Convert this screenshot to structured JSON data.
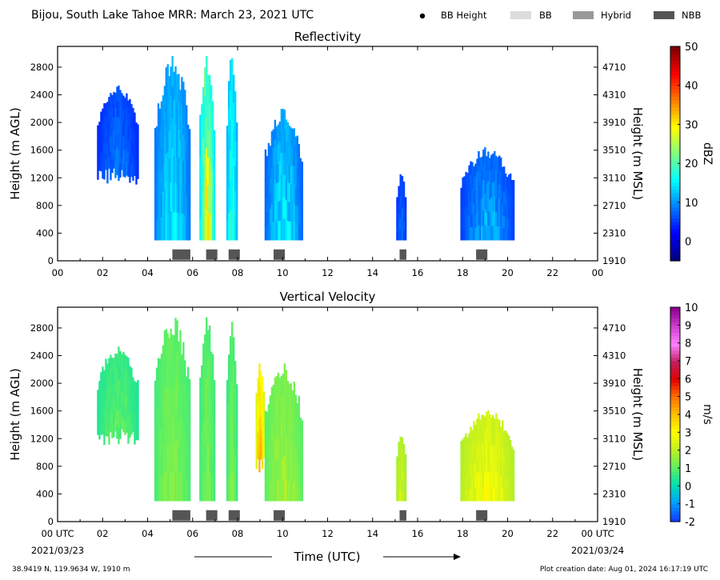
{
  "header": {
    "title": "Bijou, South Lake Tahoe MRR:  March 23, 2021 UTC",
    "legend": [
      {
        "label": "BB Height",
        "kind": "dot",
        "color": "#000000"
      },
      {
        "label": "BB",
        "kind": "patch",
        "color": "#dcdcdc"
      },
      {
        "label": "Hybrid",
        "kind": "patch",
        "color": "#999999"
      },
      {
        "label": "NBB",
        "kind": "patch",
        "color": "#555555"
      }
    ]
  },
  "footer": {
    "location": "38.9419 N, 119.9634 W, 1910 m",
    "creation": "Plot creation date: Aug 01, 2024 16:17:19 UTC",
    "start_date": "2021/03/23",
    "end_date": "2021/03/24",
    "xlabel": "Time (UTC)"
  },
  "chart_data": [
    {
      "type": "heatmap",
      "title": "Reflectivity",
      "ylabel": "Height (m AGL)",
      "ylabel_right": "Height (m MSL)",
      "xlim": [
        0,
        24
      ],
      "ylim": [
        0,
        3100
      ],
      "x_ticks": [
        "00",
        "02",
        "04",
        "06",
        "08",
        "10",
        "12",
        "14",
        "16",
        "18",
        "20",
        "22",
        "00"
      ],
      "x_ticks_values": [
        0,
        2,
        4,
        6,
        8,
        10,
        12,
        14,
        16,
        18,
        20,
        22,
        24
      ],
      "y_ticks": [
        0,
        400,
        800,
        1200,
        1600,
        2000,
        2400,
        2800
      ],
      "y_ticks_right": [
        "1910",
        "2310",
        "2710",
        "3110",
        "3510",
        "3910",
        "4310",
        "4710"
      ],
      "colorbar": {
        "label": "dBZ",
        "min": -5,
        "max": 50,
        "ticks": [
          0,
          10,
          20,
          30,
          40,
          50
        ],
        "colors": [
          "#00007f",
          "#0000ff",
          "#007fff",
          "#00ffff",
          "#7fff7f",
          "#ffff00",
          "#ff7f00",
          "#ff0000",
          "#7f0000"
        ]
      },
      "echo_blocks": [
        {
          "t0": 1.75,
          "t1": 3.6,
          "z0": 1100,
          "z1": 2550,
          "value": 4,
          "peak": 10
        },
        {
          "t0": 4.3,
          "t1": 5.9,
          "z0": 300,
          "z1": 3000,
          "value": 8,
          "peak": 17
        },
        {
          "t0": 6.3,
          "t1": 7.0,
          "z0": 300,
          "z1": 3000,
          "value": 13,
          "peak": 34
        },
        {
          "t0": 7.5,
          "t1": 8.0,
          "z0": 300,
          "z1": 3000,
          "value": 11,
          "peak": 20
        },
        {
          "t0": 9.2,
          "t1": 10.9,
          "z0": 300,
          "z1": 2250,
          "value": 7,
          "peak": 18
        },
        {
          "t0": 15.05,
          "t1": 15.5,
          "z0": 300,
          "z1": 1270,
          "value": 4,
          "peak": 9
        },
        {
          "t0": 17.9,
          "t1": 20.3,
          "z0": 300,
          "z1": 1650,
          "value": 5,
          "peak": 14
        }
      ],
      "nbb_bars": [
        [
          5.1,
          5.9
        ],
        [
          6.6,
          7.1
        ],
        [
          7.6,
          8.1
        ],
        [
          9.6,
          10.1
        ],
        [
          15.2,
          15.5
        ],
        [
          18.6,
          19.1
        ]
      ]
    },
    {
      "type": "heatmap",
      "title": "Vertical Velocity",
      "ylabel": "Height (m AGL)",
      "ylabel_right": "Height (m MSL)",
      "xlim": [
        0,
        24
      ],
      "ylim": [
        0,
        3100
      ],
      "x_ticks": [
        "00 UTC",
        "02",
        "04",
        "06",
        "08",
        "10",
        "12",
        "14",
        "16",
        "18",
        "20",
        "22",
        "00 UTC"
      ],
      "x_ticks_values": [
        0,
        2,
        4,
        6,
        8,
        10,
        12,
        14,
        16,
        18,
        20,
        22,
        24
      ],
      "y_ticks": [
        0,
        400,
        800,
        1200,
        1600,
        2000,
        2400,
        2800
      ],
      "y_ticks_right": [
        "1910",
        "2310",
        "2710",
        "3110",
        "3510",
        "3910",
        "4310",
        "4710"
      ],
      "colorbar": {
        "label": "m/s",
        "min": -2,
        "max": 10,
        "ticks": [
          -2,
          -1,
          0,
          1,
          2,
          3,
          4,
          5,
          6,
          7,
          8,
          9,
          10
        ],
        "colors": [
          "#1040ff",
          "#00a0ff",
          "#00e0b0",
          "#60f060",
          "#c0f020",
          "#ffff00",
          "#ffc000",
          "#ff7000",
          "#e00000",
          "#c02060",
          "#ff80ff",
          "#d040d0",
          "#900090"
        ]
      },
      "echo_blocks": [
        {
          "t0": 1.75,
          "t1": 3.6,
          "z0": 1100,
          "z1": 2550,
          "value": 0.3,
          "peak": 1.2
        },
        {
          "t0": 4.3,
          "t1": 5.9,
          "z0": 300,
          "z1": 3000,
          "value": 0.7,
          "peak": 1.6
        },
        {
          "t0": 6.3,
          "t1": 7.0,
          "z0": 300,
          "z1": 3000,
          "value": 0.6,
          "peak": 1.5
        },
        {
          "t0": 7.5,
          "t1": 8.0,
          "z0": 300,
          "z1": 3000,
          "value": 0.5,
          "peak": 1.5
        },
        {
          "t0": 8.8,
          "t1": 9.2,
          "z0": 700,
          "z1": 2400,
          "value": 2.2,
          "peak": 4.8
        },
        {
          "t0": 9.2,
          "t1": 10.9,
          "z0": 300,
          "z1": 2300,
          "value": 0.9,
          "peak": 2.0
        },
        {
          "t0": 15.05,
          "t1": 15.5,
          "z0": 300,
          "z1": 1270,
          "value": 1.6,
          "peak": 2.5
        },
        {
          "t0": 17.9,
          "t1": 20.3,
          "z0": 300,
          "z1": 1650,
          "value": 1.8,
          "peak": 3.2
        }
      ],
      "nbb_bars": [
        [
          5.1,
          5.9
        ],
        [
          6.6,
          7.1
        ],
        [
          7.6,
          8.1
        ],
        [
          9.6,
          10.1
        ],
        [
          15.2,
          15.5
        ],
        [
          18.6,
          19.1
        ]
      ]
    }
  ]
}
